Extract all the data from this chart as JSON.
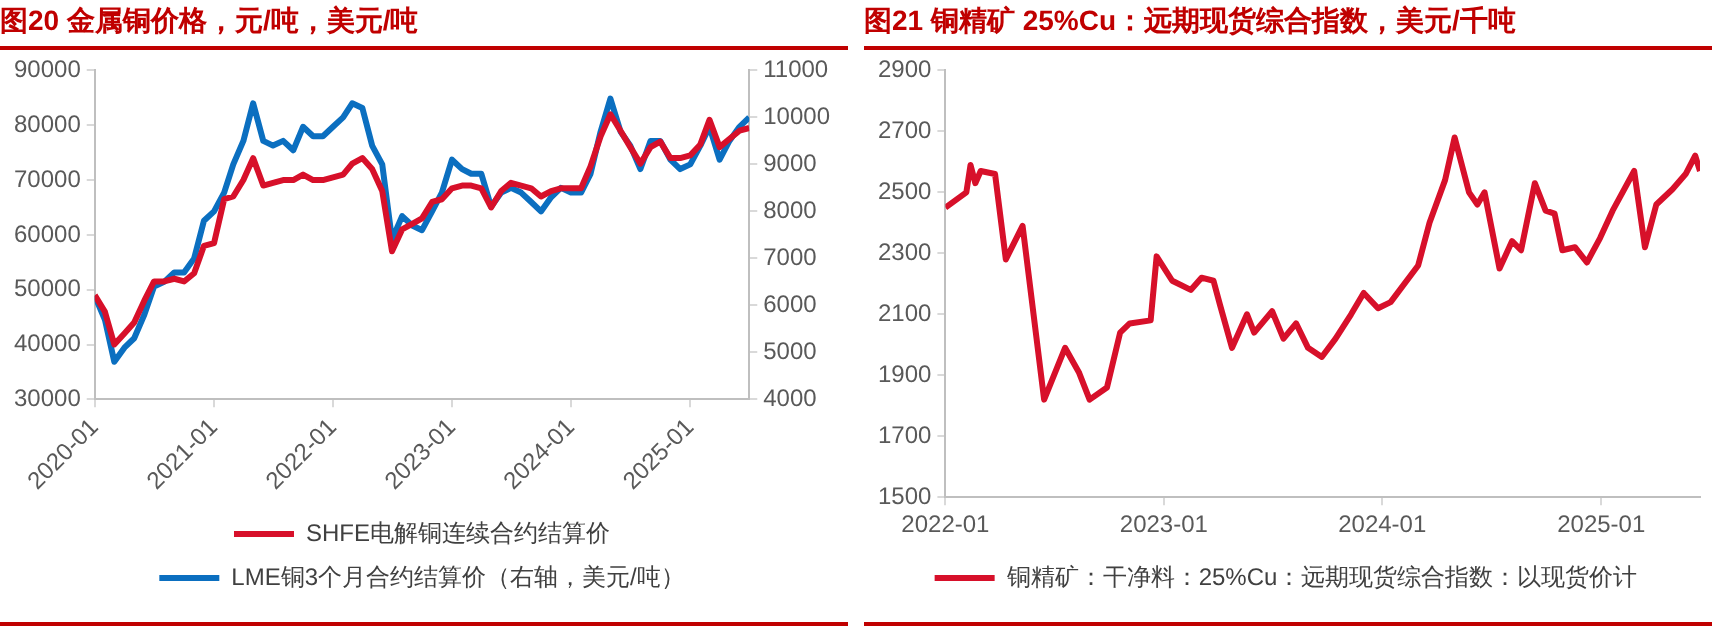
{
  "chart_data": [
    {
      "type": "line",
      "title": "图20  金属铜价格，元/吨，美元/吨",
      "xlim": [
        "2020-01",
        "2025-07"
      ],
      "xticks": [
        "2020-01",
        "2021-01",
        "2022-01",
        "2023-01",
        "2024-01",
        "2025-01"
      ],
      "ylim": [
        30000,
        90000
      ],
      "yticks": [
        30000,
        40000,
        50000,
        60000,
        70000,
        80000,
        90000
      ],
      "y2lim": [
        4000,
        11000
      ],
      "y2ticks": [
        4000,
        5000,
        6000,
        7000,
        8000,
        9000,
        10000,
        11000
      ],
      "grid": false,
      "legend": "bottom",
      "marker": "none",
      "line_style": "solid",
      "x": [
        "2020-01",
        "2020-02",
        "2020-03",
        "2020-04",
        "2020-05",
        "2020-06",
        "2020-07",
        "2020-08",
        "2020-09",
        "2020-10",
        "2020-11",
        "2020-12",
        "2021-01",
        "2021-02",
        "2021-03",
        "2021-04",
        "2021-05",
        "2021-06",
        "2021-07",
        "2021-08",
        "2021-09",
        "2021-10",
        "2021-11",
        "2021-12",
        "2022-01",
        "2022-02",
        "2022-03",
        "2022-04",
        "2022-05",
        "2022-06",
        "2022-07",
        "2022-08",
        "2022-09",
        "2022-10",
        "2022-11",
        "2022-12",
        "2023-01",
        "2023-02",
        "2023-03",
        "2023-04",
        "2023-05",
        "2023-06",
        "2023-07",
        "2023-08",
        "2023-09",
        "2023-10",
        "2023-11",
        "2023-12",
        "2024-01",
        "2024-02",
        "2024-03",
        "2024-04",
        "2024-05",
        "2024-06",
        "2024-07",
        "2024-08",
        "2024-09",
        "2024-10",
        "2024-11",
        "2024-12",
        "2025-01",
        "2025-02",
        "2025-03",
        "2025-04",
        "2025-05",
        "2025-06",
        "2025-07"
      ],
      "series": [
        {
          "name": "SHFE电解铜连续合约结算价",
          "color": "#d7102a",
          "values": [
            49000,
            46000,
            40000,
            42000,
            44000,
            48000,
            51500,
            51500,
            52000,
            51500,
            53000,
            58000,
            58500,
            66500,
            67000,
            70000,
            74000,
            69000,
            69500,
            70000,
            70000,
            71000,
            70000,
            70000,
            70500,
            71000,
            73000,
            74000,
            72000,
            68000,
            57000,
            61000,
            62000,
            63000,
            66000,
            66500,
            68500,
            69000,
            69000,
            68500,
            65000,
            68000,
            69500,
            69000,
            68500,
            67000,
            68000,
            68500,
            68500,
            68500,
            72500,
            78000,
            82000,
            79000,
            76000,
            73000,
            76000,
            77000,
            74000,
            74000,
            74500,
            76500,
            81000,
            76000,
            77500,
            79000,
            79500
          ]
        },
        {
          "name": "LME铜3个月合约结算价（右轴，美元/吨）",
          "color": "#0b6fc0",
          "axis": "y2",
          "values": [
            6200,
            5700,
            4800,
            5100,
            5300,
            5800,
            6400,
            6500,
            6700,
            6700,
            7000,
            7800,
            8000,
            8400,
            9000,
            9500,
            10300,
            9500,
            9400,
            9500,
            9300,
            9800,
            9600,
            9600,
            9800,
            10000,
            10300,
            10200,
            9400,
            9000,
            7400,
            7900,
            7700,
            7600,
            8000,
            8400,
            9100,
            8900,
            8800,
            8800,
            8100,
            8400,
            8500,
            8400,
            8200,
            8000,
            8300,
            8500,
            8400,
            8400,
            8800,
            9700,
            10400,
            9700,
            9400,
            8900,
            9500,
            9500,
            9100,
            8900,
            9000,
            9400,
            9800,
            9100,
            9500,
            9800,
            10000
          ]
        }
      ]
    },
    {
      "type": "line",
      "title": "图21  铜精矿 25%Cu：远期现货综合指数，美元/千吨",
      "xlim": [
        "2022-01",
        "2025-06-15"
      ],
      "xticks": [
        "2022-01",
        "2023-01",
        "2024-01",
        "2025-01"
      ],
      "ylim": [
        1500,
        2900
      ],
      "yticks": [
        1500,
        1700,
        1900,
        2100,
        2300,
        2500,
        2700,
        2900
      ],
      "grid": false,
      "legend": "bottom",
      "marker": "none",
      "line_style": "solid",
      "x": [
        "2022-01-01",
        "2022-02-05",
        "2022-02-12",
        "2022-02-20",
        "2022-03-01",
        "2022-03-25",
        "2022-04-12",
        "2022-05-10",
        "2022-06-15",
        "2022-07-20",
        "2022-08-12",
        "2022-08-30",
        "2022-09-28",
        "2022-10-20",
        "2022-11-05",
        "2022-12-10",
        "2022-12-20",
        "2023-01-15",
        "2023-02-15",
        "2023-03-05",
        "2023-03-25",
        "2023-04-05",
        "2023-04-25",
        "2023-05-20",
        "2023-06-01",
        "2023-07-01",
        "2023-07-20",
        "2023-08-10",
        "2023-08-30",
        "2023-09-22",
        "2023-10-15",
        "2023-11-10",
        "2023-12-01",
        "2023-12-25",
        "2024-01-15",
        "2024-03-01",
        "2024-03-20",
        "2024-04-15",
        "2024-05-01",
        "2024-05-25",
        "2024-06-08",
        "2024-06-20",
        "2024-07-15",
        "2024-08-05",
        "2024-08-20",
        "2024-09-12",
        "2024-09-30",
        "2024-10-15",
        "2024-10-28",
        "2024-11-18",
        "2024-12-08",
        "2024-12-30",
        "2025-01-20",
        "2025-02-25",
        "2025-03-15",
        "2025-04-03",
        "2025-04-30",
        "2025-05-22",
        "2025-06-07",
        "2025-06-15"
      ],
      "series": [
        {
          "name": "铜精矿：干净料：25%Cu：远期现货综合指数：以现货价计",
          "color": "#d7102a",
          "values": [
            2450,
            2500,
            2590,
            2530,
            2570,
            2560,
            2280,
            2390,
            1820,
            1990,
            1910,
            1820,
            1860,
            2040,
            2070,
            2080,
            2290,
            2210,
            2180,
            2220,
            2210,
            2130,
            1990,
            2100,
            2040,
            2110,
            2020,
            2070,
            1990,
            1960,
            2020,
            2100,
            2170,
            2120,
            2140,
            2260,
            2400,
            2540,
            2680,
            2500,
            2460,
            2500,
            2250,
            2340,
            2310,
            2530,
            2440,
            2430,
            2310,
            2320,
            2270,
            2350,
            2440,
            2570,
            2320,
            2460,
            2510,
            2560,
            2620,
            2570
          ]
        }
      ]
    }
  ]
}
